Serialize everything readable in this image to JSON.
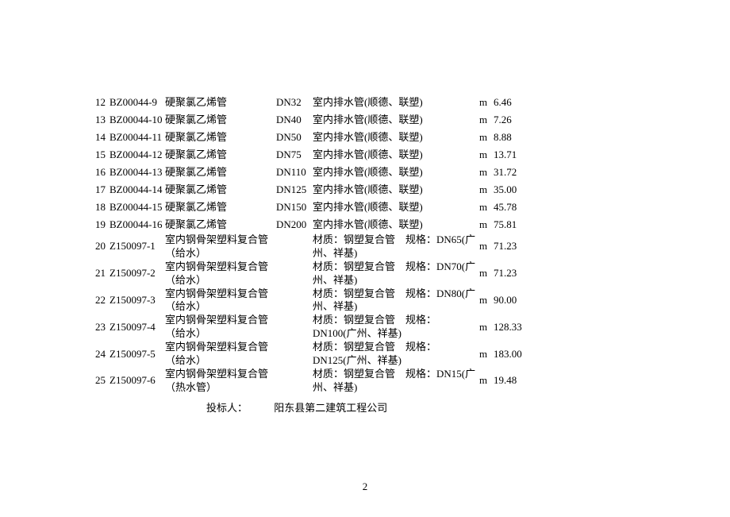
{
  "rows": [
    {
      "idx": "12",
      "code": "BZ00044-9",
      "name": "硬聚氯乙烯管",
      "spec": "DN32",
      "desc": "室内排水管(顺德、联塑)",
      "unit": "m",
      "price": "6.46",
      "type": "single"
    },
    {
      "idx": "13",
      "code": "BZ00044-10",
      "name": "硬聚氯乙烯管",
      "spec": "DN40",
      "desc": "室内排水管(顺德、联塑)",
      "unit": "m",
      "price": "7.26",
      "type": "single"
    },
    {
      "idx": "14",
      "code": "BZ00044-11",
      "name": "硬聚氯乙烯管",
      "spec": "DN50",
      "desc": "室内排水管(顺德、联塑)",
      "unit": "m",
      "price": "8.88",
      "type": "single"
    },
    {
      "idx": "15",
      "code": "BZ00044-12",
      "name": "硬聚氯乙烯管",
      "spec": "DN75",
      "desc": "室内排水管(顺德、联塑)",
      "unit": "m",
      "price": "13.71",
      "type": "single"
    },
    {
      "idx": "16",
      "code": "BZ00044-13",
      "name": "硬聚氯乙烯管",
      "spec": "DN110",
      "desc": "室内排水管(顺德、联塑)",
      "unit": "m",
      "price": "31.72",
      "type": "single"
    },
    {
      "idx": "17",
      "code": "BZ00044-14",
      "name": "硬聚氯乙烯管",
      "spec": "DN125",
      "desc": "室内排水管(顺德、联塑)",
      "unit": "m",
      "price": "35.00",
      "type": "single"
    },
    {
      "idx": "18",
      "code": "BZ00044-15",
      "name": "硬聚氯乙烯管",
      "spec": "DN150",
      "desc": "室内排水管(顺德、联塑)",
      "unit": "m",
      "price": "45.78",
      "type": "single"
    },
    {
      "idx": "19",
      "code": "BZ00044-16",
      "name": "硬聚氯乙烯管",
      "spec": "DN200",
      "desc": "室内排水管(顺德、联塑)",
      "unit": "m",
      "price": "75.81",
      "type": "single"
    },
    {
      "idx": "20",
      "code": "Z150097-1",
      "name": "室内钢骨架塑料复合管（给水）",
      "spec": "",
      "desc": "材质：钢塑复合管　规格：DN65(广州、祥基)",
      "unit": "m",
      "price": "71.23",
      "type": "double"
    },
    {
      "idx": "21",
      "code": "Z150097-2",
      "name": "室内钢骨架塑料复合管（给水）",
      "spec": "",
      "desc": "材质：钢塑复合管　规格：DN70(广州、祥基)",
      "unit": "m",
      "price": "71.23",
      "type": "double"
    },
    {
      "idx": "22",
      "code": "Z150097-3",
      "name": "室内钢骨架塑料复合管（给水）",
      "spec": "",
      "desc": "材质：钢塑复合管　规格：DN80(广州、祥基)",
      "unit": "m",
      "price": "90.00",
      "type": "double"
    },
    {
      "idx": "23",
      "code": "Z150097-4",
      "name": "室内钢骨架塑料复合管（给水）",
      "spec": "",
      "desc": "材质：钢塑复合管　规格：DN100(广州、祥基)",
      "unit": "m",
      "price": "128.33",
      "type": "double"
    },
    {
      "idx": "24",
      "code": "Z150097-5",
      "name": "室内钢骨架塑料复合管（给水）",
      "spec": "",
      "desc": "材质：钢塑复合管　规格：DN125(广州、祥基)",
      "unit": "m",
      "price": "183.00",
      "type": "double"
    },
    {
      "idx": "25",
      "code": "Z150097-6",
      "name": "室内钢骨架塑料复合管（热水管）",
      "spec": "",
      "desc": "材质：钢塑复合管　规格：DN15(广州、祥基)",
      "unit": "m",
      "price": "19.48",
      "type": "double"
    }
  ],
  "footer": {
    "label": "投标人：",
    "value": "阳东县第二建筑工程公司"
  },
  "page_number": "2"
}
